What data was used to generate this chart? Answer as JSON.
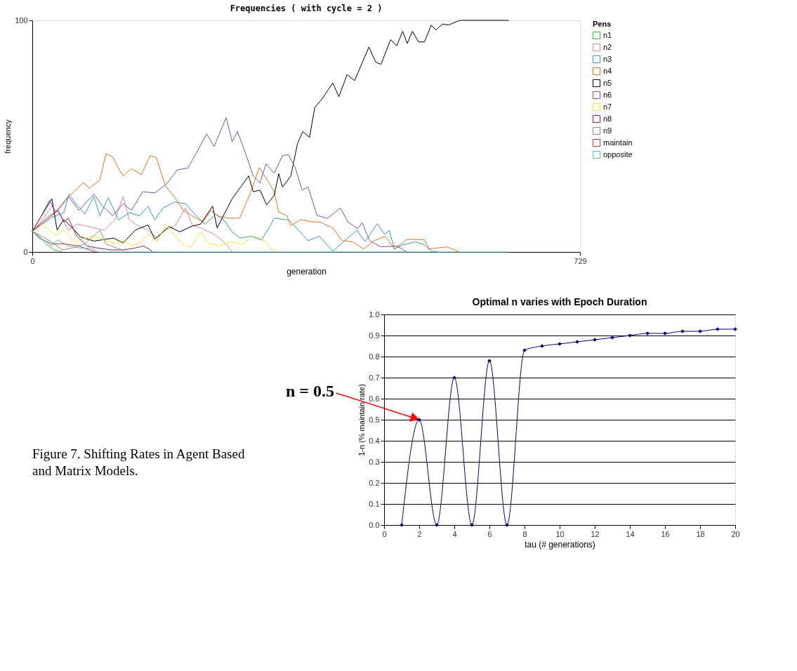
{
  "chart_data": [
    {
      "type": "line",
      "title": "Frequencies ( with cycle = 2 )",
      "xlabel": "generation",
      "ylabel": "frequency",
      "legend_title": "Pens",
      "legend": "right",
      "grid": false,
      "line_style": "solid",
      "marker": "none",
      "xlim": [
        0,
        729
      ],
      "xticks": [
        0,
        729
      ],
      "ylim": [
        0,
        100
      ],
      "yticks": [
        0,
        100
      ],
      "series": [
        {
          "name": "n1",
          "color": "#33cc33",
          "x": [
            0,
            9,
            18,
            29,
            40
          ],
          "values": [
            9,
            7,
            3.5,
            0.9,
            0
          ]
        },
        {
          "name": "n2",
          "color": "#e0849a",
          "x": [
            0,
            9,
            26,
            37,
            48,
            59,
            70,
            82,
            96,
            110,
            121,
            129,
            140,
            154,
            166,
            177,
            190,
            204,
            213,
            224,
            241,
            252,
            260,
            266
          ],
          "values": [
            9,
            12,
            19.8,
            16.4,
            9.4,
            12,
            11.4,
            10.4,
            9.4,
            14,
            24,
            14,
            11.4,
            9.4,
            6,
            9.4,
            11.4,
            19,
            11.4,
            10.4,
            7.8,
            5.2,
            2.6,
            0
          ]
        },
        {
          "name": "n3",
          "color": "#3399cc",
          "x": [
            0,
            14,
            26,
            42,
            49,
            56,
            70,
            82,
            90,
            101,
            115,
            129,
            143,
            154,
            163,
            174,
            190,
            204,
            216,
            230,
            244,
            255,
            266,
            277,
            291,
            305,
            316,
            322,
            341,
            347,
            367,
            382,
            400,
            414,
            432,
            443,
            459,
            469,
            475,
            482,
            493,
            510,
            522,
            531,
            540
          ],
          "values": [
            9,
            12,
            15,
            17,
            25,
            21.6,
            16.4,
            24,
            15.6,
            23.4,
            13.8,
            17,
            15.6,
            19.8,
            13.8,
            19,
            21.6,
            20.8,
            16.4,
            12,
            16.4,
            13.8,
            8.6,
            6,
            6.8,
            5.2,
            11,
            14.6,
            13.8,
            12,
            4.9,
            6.8,
            0.3,
            4.4,
            9.4,
            4.4,
            12.2,
            7.6,
            9.4,
            1.3,
            3.1,
            4.4,
            3.1,
            0.4,
            0
          ]
        },
        {
          "name": "n4",
          "color": "#f07020",
          "x": [
            0,
            20,
            34,
            49,
            68,
            76,
            90,
            98,
            107,
            115,
            121,
            132,
            145,
            157,
            165,
            177,
            190,
            201,
            213,
            227,
            238,
            246,
            262,
            276,
            291,
            302,
            313,
            322,
            328,
            339,
            344,
            358,
            372,
            382,
            400,
            412,
            426,
            441,
            455,
            470,
            482,
            499,
            522,
            528,
            552,
            569
          ],
          "values": [
            9,
            15,
            18,
            24,
            30,
            27.5,
            31,
            42.4,
            41,
            36,
            32.8,
            36,
            33.4,
            41.6,
            40.8,
            28.6,
            23.4,
            18,
            15.6,
            13,
            18,
            15.6,
            14.6,
            14.6,
            26,
            36.4,
            31,
            26,
            17.2,
            15.6,
            11.4,
            14,
            13,
            13,
            10.4,
            4.9,
            4.4,
            1.3,
            4.9,
            6.8,
            1.3,
            5.5,
            5.3,
            1.3,
            2.2,
            0
          ]
        },
        {
          "name": "n5",
          "color": "#000000",
          "x": [
            0,
            26,
            33,
            42,
            56,
            64,
            82,
            98,
            108,
            121,
            137,
            154,
            163,
            182,
            196,
            213,
            224,
            240,
            246,
            266,
            288,
            294,
            303,
            312,
            322,
            328,
            333,
            344,
            353,
            360,
            369,
            376,
            385,
            400,
            408,
            419,
            429,
            448,
            457,
            464,
            477,
            485,
            493,
            499,
            506,
            514,
            522,
            531,
            537,
            546,
            554,
            569,
            634
          ],
          "values": [
            9,
            23,
            9.5,
            14,
            9.5,
            6.5,
            4.7,
            5.5,
            6,
            3.9,
            9.4,
            11.7,
            5.5,
            11,
            8.7,
            11.2,
            12,
            19.8,
            10.4,
            23,
            32.8,
            26,
            26.7,
            20.3,
            24.5,
            33.8,
            28,
            32.8,
            46.8,
            52,
            49.5,
            62.5,
            65.8,
            73,
            67,
            76.6,
            74,
            88.5,
            82,
            81,
            91.7,
            89,
            95.3,
            90,
            95.3,
            90.7,
            90.7,
            98,
            95.8,
            98.4,
            98,
            100,
            100
          ]
        },
        {
          "name": "n6",
          "color": "#7f50a8",
          "x": [
            0,
            12,
            23,
            31,
            48,
            62,
            82,
            93,
            107,
            121,
            132,
            147,
            163,
            179,
            193,
            207,
            221,
            232,
            242,
            258,
            266,
            273,
            283,
            294,
            303,
            311,
            322,
            333,
            341,
            350,
            359,
            367,
            379,
            393,
            410,
            420,
            433,
            439,
            449,
            464,
            485,
            499
          ],
          "values": [
            9,
            15.6,
            22.4,
            17,
            24,
            18,
            25,
            20,
            15.6,
            20.8,
            18,
            26,
            25.5,
            29.4,
            35.5,
            36.2,
            44.2,
            51,
            45.5,
            58,
            47.7,
            52,
            43.3,
            32.8,
            29.8,
            38,
            34,
            41.6,
            42,
            36.4,
            26.7,
            28,
            15.8,
            14.5,
            19,
            13,
            10,
            12.6,
            4.9,
            2.2,
            2.6,
            0
          ]
        },
        {
          "name": "n7",
          "color": "#eeee30",
          "x": [
            0,
            14,
            31,
            42,
            56,
            70,
            82,
            96,
            110,
            121,
            132,
            145,
            154,
            166,
            178,
            188,
            199,
            210,
            224,
            235,
            249,
            263,
            280,
            294,
            308,
            319,
            327
          ],
          "values": [
            9,
            12,
            7,
            9.4,
            4.3,
            6,
            6.8,
            5.2,
            3.5,
            5.2,
            2.6,
            4.4,
            7.8,
            4.4,
            12,
            7.8,
            3.5,
            1.7,
            8.6,
            3.5,
            2.6,
            4.4,
            3.5,
            7,
            5.2,
            0.9,
            0
          ]
        },
        {
          "name": "n8",
          "color": "#a01868",
          "x": [
            0,
            23,
            34,
            42,
            48,
            59,
            73,
            87,
            104,
            121,
            137,
            148,
            157,
            160
          ],
          "values": [
            9,
            15,
            18,
            13,
            14.6,
            7,
            2.6,
            1.7,
            0.9,
            0.9,
            1.7,
            2.6,
            0.9,
            0
          ]
        },
        {
          "name": "n9",
          "color": "#8c8c8c",
          "x": [
            0,
            11,
            26,
            40,
            53,
            70,
            82,
            90,
            98,
            112,
            121,
            122
          ],
          "values": [
            9,
            7,
            4.3,
            0.9,
            1.7,
            3.5,
            7,
            9.4,
            3.5,
            1.7,
            0.9,
            0
          ]
        },
        {
          "name": "maintain",
          "color": "#d83020",
          "x": [
            0,
            9,
            26,
            42,
            62,
            76,
            84
          ],
          "values": [
            9,
            6,
            3.5,
            3.5,
            2.6,
            0.9,
            0
          ]
        },
        {
          "name": "opposite",
          "color": "#55c0c0",
          "x": [
            0,
            11,
            26,
            34,
            48,
            65,
            79,
            88,
            634
          ],
          "values": [
            9,
            6,
            2.6,
            5.2,
            2.6,
            1.7,
            1.7,
            0,
            0
          ]
        }
      ]
    },
    {
      "type": "line",
      "title": "Optimal n varies with Epoch Duration",
      "xlabel": "tau (# generations)",
      "ylabel": "1-n (% maintain rate)",
      "grid": "y",
      "marker": "diamond",
      "line_style": "solid",
      "legend": false,
      "xlim": [
        0,
        20
      ],
      "xticks": [
        0,
        2,
        4,
        6,
        8,
        10,
        12,
        14,
        16,
        18,
        20
      ],
      "ylim": [
        0,
        1
      ],
      "yticks": [
        {
          "value": 0,
          "label": "0.0"
        },
        0.1,
        0.2,
        0.3,
        0.4,
        0.5,
        0.6,
        0.7,
        0.8,
        0.9,
        {
          "value": 1,
          "label": "1.0"
        }
      ],
      "annotations": [
        {
          "text": "n = 0.5",
          "x": 2,
          "y": 0.5
        },
        "Figure 7. Shifting Rates in Agent Based and Matrix Models."
      ],
      "series": [
        {
          "color": "#000080",
          "x": [
            1,
            2,
            3,
            4,
            5,
            6,
            7,
            8,
            9,
            10,
            11,
            12,
            13,
            14,
            15,
            16,
            17,
            18,
            19,
            20
          ],
          "values": [
            0,
            0.5,
            0,
            0.7,
            0,
            0.78,
            0,
            0.83,
            0.85,
            0.86,
            0.87,
            0.88,
            0.89,
            0.9,
            0.91,
            0.91,
            0.92,
            0.92,
            0.93,
            0.93
          ]
        }
      ]
    }
  ]
}
